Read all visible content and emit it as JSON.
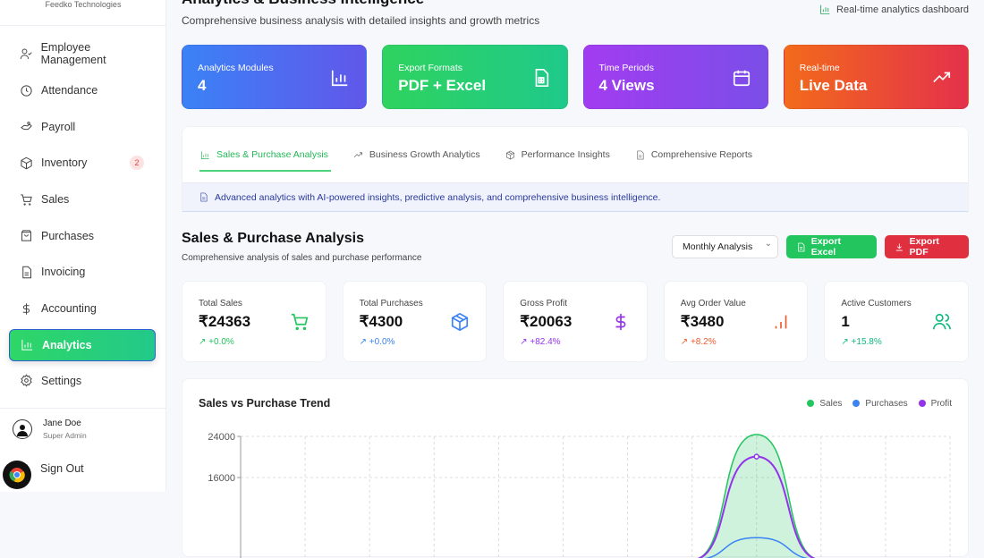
{
  "sidebar": {
    "company": "Feedko Technologies",
    "items": [
      {
        "label": "Employee Management",
        "icon": "user-check-icon"
      },
      {
        "label": "Attendance",
        "icon": "clock-icon"
      },
      {
        "label": "Payroll",
        "icon": "hand-coins-icon"
      },
      {
        "label": "Inventory",
        "icon": "package-icon",
        "badge": "2"
      },
      {
        "label": "Sales",
        "icon": "cart-icon"
      },
      {
        "label": "Purchases",
        "icon": "shopping-bag-icon"
      },
      {
        "label": "Invoicing",
        "icon": "file-icon"
      },
      {
        "label": "Accounting",
        "icon": "dollar-icon"
      },
      {
        "label": "Analytics",
        "icon": "bar-chart-icon",
        "active": true
      },
      {
        "label": "Settings",
        "icon": "gear-icon"
      }
    ],
    "user": {
      "name": "Jane Doe",
      "role": "Super Admin"
    },
    "sign_out": "Sign Out"
  },
  "header": {
    "title": "Analytics & Business Intelligence",
    "subtitle": "Comprehensive business analysis with detailed insights and growth metrics",
    "realtime": "Real-time analytics dashboard"
  },
  "cards": [
    {
      "label": "Analytics Modules",
      "value": "4",
      "gradient": [
        "#3b82f6",
        "#6157ea"
      ]
    },
    {
      "label": "Export Formats",
      "value": "PDF + Excel",
      "gradient": [
        "#2fd35f",
        "#1fc98a"
      ]
    },
    {
      "label": "Time Periods",
      "value": "4 Views",
      "gradient": [
        "#a23cf0",
        "#7b4ee8"
      ]
    },
    {
      "label": "Real-time",
      "value": "Live Data",
      "gradient": [
        "#f26a1b",
        "#e4314b"
      ]
    }
  ],
  "tabs": [
    {
      "label": "Sales & Purchase Analysis",
      "active": true
    },
    {
      "label": "Business Growth Analytics"
    },
    {
      "label": "Performance Insights"
    },
    {
      "label": "Comprehensive Reports"
    }
  ],
  "info": "Advanced analytics with AI-powered insights, predictive analysis, and comprehensive business intelligence.",
  "section": {
    "title": "Sales & Purchase Analysis",
    "subtitle": "Comprehensive analysis of sales and purchase performance",
    "period": "Monthly Analysis",
    "export_excel": "Export Excel",
    "export_pdf": "Export PDF"
  },
  "stats": [
    {
      "label": "Total Sales",
      "value": "₹24363",
      "change": "+0.0%",
      "color": "#22c55e",
      "icon": "cart-icon"
    },
    {
      "label": "Total Purchases",
      "value": "₹4300",
      "change": "+0.0%",
      "color": "#3b82f6",
      "icon": "box-icon"
    },
    {
      "label": "Gross Profit",
      "value": "₹20063",
      "change": "+82.4%",
      "color": "#9333ea",
      "icon": "dollar-icon"
    },
    {
      "label": "Avg Order Value",
      "value": "₹3480",
      "change": "+8.2%",
      "color": "#ef5a2b",
      "icon": "bar-signal-icon"
    },
    {
      "label": "Active Customers",
      "value": "1",
      "change": "+15.8%",
      "color": "#10b981",
      "icon": "users-icon"
    }
  ],
  "chart_data": {
    "type": "area",
    "title": "Sales vs Purchase Trend",
    "yticks": [
      "24000",
      "16000"
    ],
    "ylim": [
      0,
      24000
    ],
    "grid": true,
    "legend": "top-right",
    "series": [
      {
        "name": "Sales",
        "color": "#22c55e",
        "values": [
          0,
          0,
          0,
          0,
          0,
          0,
          0,
          0,
          24363,
          0,
          0,
          0
        ]
      },
      {
        "name": "Purchases",
        "color": "#3b82f6",
        "values": [
          0,
          0,
          0,
          0,
          0,
          0,
          0,
          0,
          4300,
          0,
          0,
          0
        ]
      },
      {
        "name": "Profit",
        "color": "#9333ea",
        "values": [
          0,
          0,
          0,
          0,
          0,
          0,
          0,
          0,
          20063,
          0,
          0,
          0
        ]
      }
    ]
  }
}
